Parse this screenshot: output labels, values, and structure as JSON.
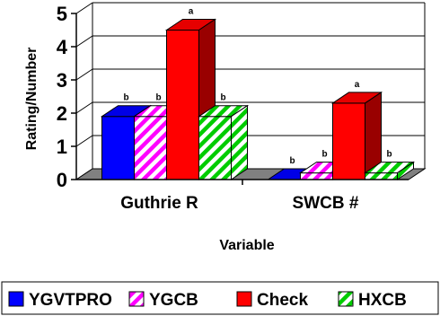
{
  "chart_data": {
    "type": "bar",
    "style": "3d-clustered",
    "categories": [
      "Guthrie R",
      "SWCB #"
    ],
    "series": [
      {
        "name": "YGVTPRO",
        "values": [
          1.9,
          0.0
        ],
        "letters": [
          "b",
          "b"
        ],
        "color": "#0000ff",
        "pattern": "solid"
      },
      {
        "name": "YGCB",
        "values": [
          1.9,
          0.2
        ],
        "letters": [
          "b",
          "b"
        ],
        "color": "#ff00ff",
        "pattern": "diagonal-stripes"
      },
      {
        "name": "Check",
        "values": [
          4.5,
          2.3
        ],
        "letters": [
          "a",
          "a"
        ],
        "color": "#ff0000",
        "pattern": "solid"
      },
      {
        "name": "HXCB",
        "values": [
          1.9,
          0.2
        ],
        "letters": [
          "b",
          "b"
        ],
        "color": "#00cc00",
        "pattern": "diagonal-stripes"
      }
    ],
    "ylabel": "Rating/Number",
    "xlabel": "Variable",
    "ylim": [
      0,
      5
    ],
    "yticks": [
      0,
      1,
      2,
      3,
      4,
      5
    ],
    "grid": true,
    "legend": "bottom"
  }
}
